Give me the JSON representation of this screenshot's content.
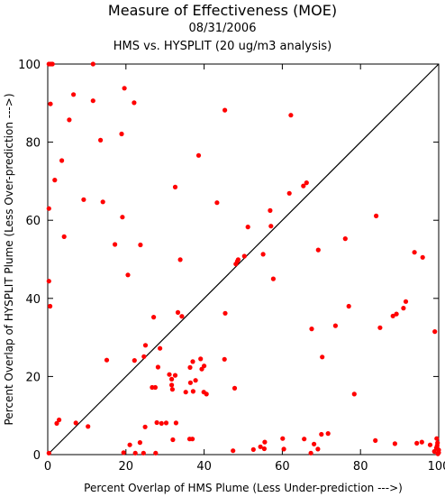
{
  "chart_data": {
    "type": "scatter",
    "title": "Measure of Effectiveness (MOE)",
    "subtitle": "08/31/2006",
    "subtitle2": "HMS vs. HYSPLIT  (20 ug/m3 analysis)",
    "xlabel": "Percent Overlap of HMS Plume (Less Under-prediction --->)",
    "ylabel": "Percent Overlap of HYSPLIT Plume (Less Over-prediction --->)",
    "xlim": [
      0,
      100
    ],
    "ylim": [
      0,
      100
    ],
    "xticks": [
      "0",
      "20",
      "40",
      "60",
      "80",
      "100"
    ],
    "yticks": [
      "0",
      "20",
      "40",
      "60",
      "80",
      "100"
    ],
    "grid": false,
    "diagonal_line": true,
    "point_color": "#ff0000",
    "points": [
      [
        0.3,
        100
      ],
      [
        0.8,
        100
      ],
      [
        1.2,
        100
      ],
      [
        11.6,
        100
      ],
      [
        19.6,
        93.8
      ],
      [
        6.6,
        92.2
      ],
      [
        11.6,
        90.6
      ],
      [
        0.7,
        89.8
      ],
      [
        22.1,
        90.1
      ],
      [
        45.3,
        88.2
      ],
      [
        62.2,
        86.9
      ],
      [
        5.5,
        85.7
      ],
      [
        13.5,
        80.5
      ],
      [
        18.9,
        82.1
      ],
      [
        38.6,
        76.6
      ],
      [
        3.6,
        75.3
      ],
      [
        1.8,
        70.3
      ],
      [
        65.4,
        68.8
      ],
      [
        66.2,
        69.6
      ],
      [
        32.6,
        68.5
      ],
      [
        61.8,
        66.9
      ],
      [
        9.2,
        65.3
      ],
      [
        14.1,
        64.7
      ],
      [
        43.3,
        64.5
      ],
      [
        0.3,
        63.0
      ],
      [
        56.9,
        62.5
      ],
      [
        19.1,
        60.8
      ],
      [
        84.0,
        61.1
      ],
      [
        51.2,
        58.3
      ],
      [
        57.1,
        58.5
      ],
      [
        4.2,
        55.8
      ],
      [
        17.2,
        53.8
      ],
      [
        23.7,
        53.7
      ],
      [
        76.1,
        55.3
      ],
      [
        69.2,
        52.4
      ],
      [
        33.9,
        49.9
      ],
      [
        48.1,
        48.8
      ],
      [
        48.5,
        49.5
      ],
      [
        48.7,
        49.9
      ],
      [
        50.3,
        50.8
      ],
      [
        55.1,
        51.3
      ],
      [
        57.7,
        45.0
      ],
      [
        20.5,
        46.0
      ],
      [
        93.8,
        51.8
      ],
      [
        95.9,
        50.5
      ],
      [
        0.3,
        44.4
      ],
      [
        0.6,
        38.0
      ],
      [
        77.0,
        38.0
      ],
      [
        78.4,
        15.5
      ],
      [
        85.0,
        32.5
      ],
      [
        88.3,
        35.5
      ],
      [
        89.2,
        36.0
      ],
      [
        91.0,
        37.5
      ],
      [
        91.6,
        39.2
      ],
      [
        73.6,
        33.0
      ],
      [
        67.5,
        32.2
      ],
      [
        99.0,
        31.5
      ],
      [
        33.3,
        36.4
      ],
      [
        34.3,
        35.4
      ],
      [
        45.4,
        36.2
      ],
      [
        27.1,
        35.2
      ],
      [
        70.2,
        25.0
      ],
      [
        25.0,
        28.0
      ],
      [
        28.7,
        27.2
      ],
      [
        15.1,
        24.2
      ],
      [
        22.2,
        24.1
      ],
      [
        24.6,
        25.1
      ],
      [
        31.1,
        20.5
      ],
      [
        31.7,
        19.3
      ],
      [
        32.6,
        20.3
      ],
      [
        36.4,
        22.3
      ],
      [
        37.1,
        23.8
      ],
      [
        39.1,
        24.5
      ],
      [
        39.4,
        21.9
      ],
      [
        40.0,
        22.7
      ],
      [
        45.2,
        24.4
      ],
      [
        26.7,
        17.2
      ],
      [
        28.2,
        22.4
      ],
      [
        27.5,
        17.2
      ],
      [
        31.9,
        16.7
      ],
      [
        31.7,
        17.8
      ],
      [
        35.3,
        16.0
      ],
      [
        36.5,
        18.4
      ],
      [
        37.2,
        16.2
      ],
      [
        37.8,
        19.0
      ],
      [
        39.9,
        16.0
      ],
      [
        40.6,
        15.5
      ],
      [
        47.8,
        17.0
      ],
      [
        2.3,
        8.0
      ],
      [
        2.9,
        8.9
      ],
      [
        7.2,
        8.1
      ],
      [
        10.3,
        7.2
      ],
      [
        24.9,
        7.1
      ],
      [
        27.9,
        8.2
      ],
      [
        29.1,
        8.0
      ],
      [
        30.3,
        8.1
      ],
      [
        32.8,
        8.1
      ],
      [
        36.3,
        4.0
      ],
      [
        37.0,
        4.0
      ],
      [
        21.0,
        2.5
      ],
      [
        23.6,
        3.1
      ],
      [
        32.0,
        3.8
      ],
      [
        19.4,
        0.5
      ],
      [
        22.4,
        0.4
      ],
      [
        24.5,
        0.4
      ],
      [
        27.6,
        0.4
      ],
      [
        47.4,
        1.0
      ],
      [
        52.6,
        1.3
      ],
      [
        54.4,
        2.0
      ],
      [
        55.4,
        1.5
      ],
      [
        55.5,
        3.2
      ],
      [
        60.1,
        4.1
      ],
      [
        60.4,
        1.4
      ],
      [
        65.6,
        4.0
      ],
      [
        68.1,
        2.7
      ],
      [
        69.1,
        1.4
      ],
      [
        70.0,
        5.2
      ],
      [
        71.7,
        5.4
      ],
      [
        67.3,
        0.4
      ],
      [
        83.8,
        3.6
      ],
      [
        88.8,
        2.8
      ],
      [
        94.4,
        2.9
      ],
      [
        95.7,
        3.2
      ],
      [
        97.8,
        2.5
      ],
      [
        98.9,
        0.8
      ],
      [
        99.4,
        1.7
      ],
      [
        99.5,
        4.1
      ],
      [
        99.7,
        3.0
      ],
      [
        99.8,
        0.2
      ],
      [
        100,
        0.5
      ],
      [
        100,
        1.2
      ],
      [
        99.6,
        2.3
      ],
      [
        0.3,
        0.4
      ]
    ]
  }
}
